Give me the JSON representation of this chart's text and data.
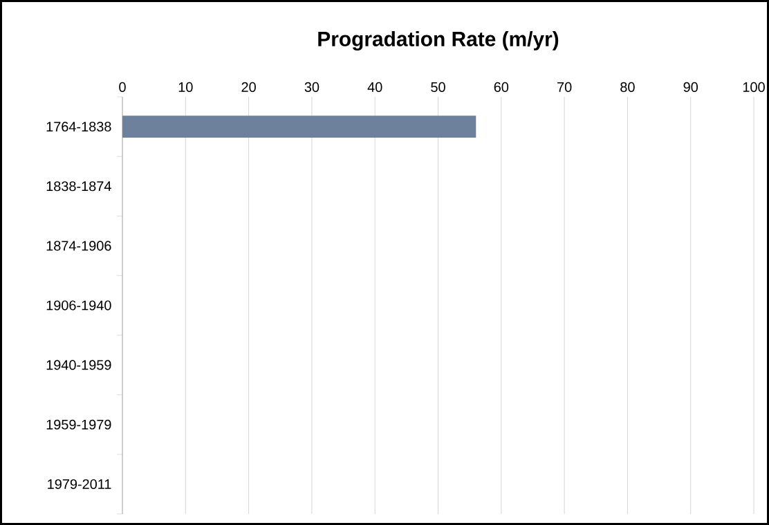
{
  "chart_data": {
    "type": "bar",
    "orientation": "horizontal",
    "title": "Progradation Rate (m/yr)",
    "categories": [
      "1764-1838",
      "1838-1874",
      "1874-1906",
      "1906-1940",
      "1940-1959",
      "1959-1979",
      "1979-2011"
    ],
    "values": [
      56,
      null,
      null,
      null,
      null,
      null,
      null
    ],
    "color": "#6e819c",
    "xlim": [
      0,
      100
    ],
    "xticks": [
      0,
      10,
      20,
      30,
      40,
      50,
      60,
      70,
      80,
      90,
      100
    ],
    "grid": "x"
  }
}
